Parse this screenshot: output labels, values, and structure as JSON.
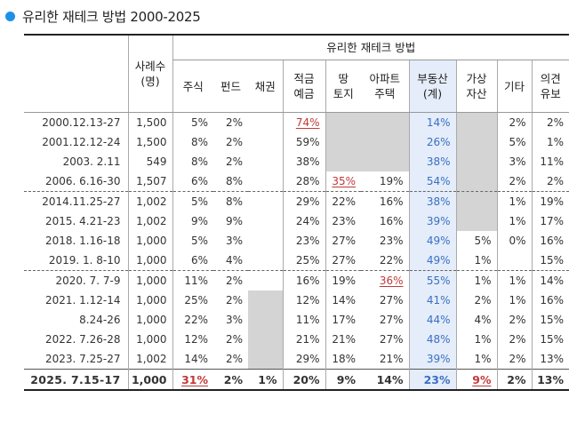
{
  "title": "유리한 재테크 방법 2000-2025",
  "table": {
    "group_header": "유리한 재테크 방법",
    "sample_header": [
      "사례수",
      "(명)"
    ],
    "columns": [
      [
        "주식"
      ],
      [
        "펀드"
      ],
      [
        "채권"
      ],
      [
        "적금",
        "예금"
      ],
      [
        "땅",
        "토지"
      ],
      [
        "아파트",
        "주택"
      ],
      [
        "부동산",
        "(계)"
      ],
      [
        "가상",
        "자산"
      ],
      [
        "기타"
      ],
      [
        "의견",
        "유보"
      ]
    ],
    "rows": [
      {
        "date": "2000.12.13-27",
        "n": "1,500",
        "v": [
          "5%",
          "2%",
          "",
          "74%",
          "",
          "",
          "14%",
          "",
          "2%",
          "2%"
        ]
      },
      {
        "date": "2001.12.12-24",
        "n": "1,500",
        "v": [
          "8%",
          "2%",
          "",
          "59%",
          "",
          "",
          "26%",
          "",
          "5%",
          "1%"
        ]
      },
      {
        "date": "2003.  2.11",
        "n": "549",
        "v": [
          "8%",
          "2%",
          "",
          "38%",
          "",
          "",
          "38%",
          "",
          "3%",
          "11%"
        ]
      },
      {
        "date": "2006.  6.16-30",
        "n": "1,507",
        "v": [
          "6%",
          "8%",
          "",
          "28%",
          "35%",
          "19%",
          "54%",
          "",
          "2%",
          "2%"
        ]
      },
      {
        "date": "2014.11.25-27",
        "n": "1,002",
        "v": [
          "5%",
          "8%",
          "",
          "29%",
          "22%",
          "16%",
          "38%",
          "",
          "1%",
          "19%"
        ]
      },
      {
        "date": "2015.  4.21-23",
        "n": "1,002",
        "v": [
          "9%",
          "9%",
          "",
          "24%",
          "23%",
          "16%",
          "39%",
          "",
          "1%",
          "17%"
        ]
      },
      {
        "date": "2018.  1.16-18",
        "n": "1,000",
        "v": [
          "5%",
          "3%",
          "",
          "23%",
          "27%",
          "23%",
          "49%",
          "5%",
          "0%",
          "16%"
        ]
      },
      {
        "date": "2019.  1.  8-10",
        "n": "1,000",
        "v": [
          "6%",
          "4%",
          "",
          "25%",
          "27%",
          "22%",
          "49%",
          "1%",
          "",
          "15%"
        ]
      },
      {
        "date": "2020.  7.  7-9",
        "n": "1,000",
        "v": [
          "11%",
          "2%",
          "",
          "16%",
          "19%",
          "36%",
          "55%",
          "1%",
          "1%",
          "14%"
        ]
      },
      {
        "date": "2021.  1.12-14",
        "n": "1,000",
        "v": [
          "25%",
          "2%",
          "",
          "12%",
          "14%",
          "27%",
          "41%",
          "2%",
          "1%",
          "16%"
        ]
      },
      {
        "date": "8.24-26",
        "n": "1,000",
        "v": [
          "22%",
          "3%",
          "",
          "11%",
          "17%",
          "27%",
          "44%",
          "4%",
          "2%",
          "15%"
        ]
      },
      {
        "date": "2022.  7.26-28",
        "n": "1,000",
        "v": [
          "12%",
          "2%",
          "",
          "21%",
          "21%",
          "27%",
          "48%",
          "1%",
          "2%",
          "15%"
        ]
      },
      {
        "date": "2023.  7.25-27",
        "n": "1,002",
        "v": [
          "14%",
          "2%",
          "",
          "29%",
          "18%",
          "21%",
          "39%",
          "1%",
          "2%",
          "13%"
        ]
      },
      {
        "date": "2025.  7.15-17",
        "n": "1,000",
        "v": [
          "31%",
          "2%",
          "1%",
          "20%",
          "9%",
          "14%",
          "23%",
          "9%",
          "2%",
          "13%"
        ]
      }
    ],
    "highlights_red": [
      [
        0,
        3
      ],
      [
        3,
        4
      ],
      [
        8,
        5
      ],
      [
        13,
        0
      ],
      [
        13,
        7
      ]
    ],
    "colors": {
      "accent_dot": "#1e90e8",
      "realestate_text": "#3a6fc4",
      "highlight_red": "#c0393b",
      "na_fill": "#d4d4d4",
      "realestate_fill": "#e4edf9"
    }
  }
}
